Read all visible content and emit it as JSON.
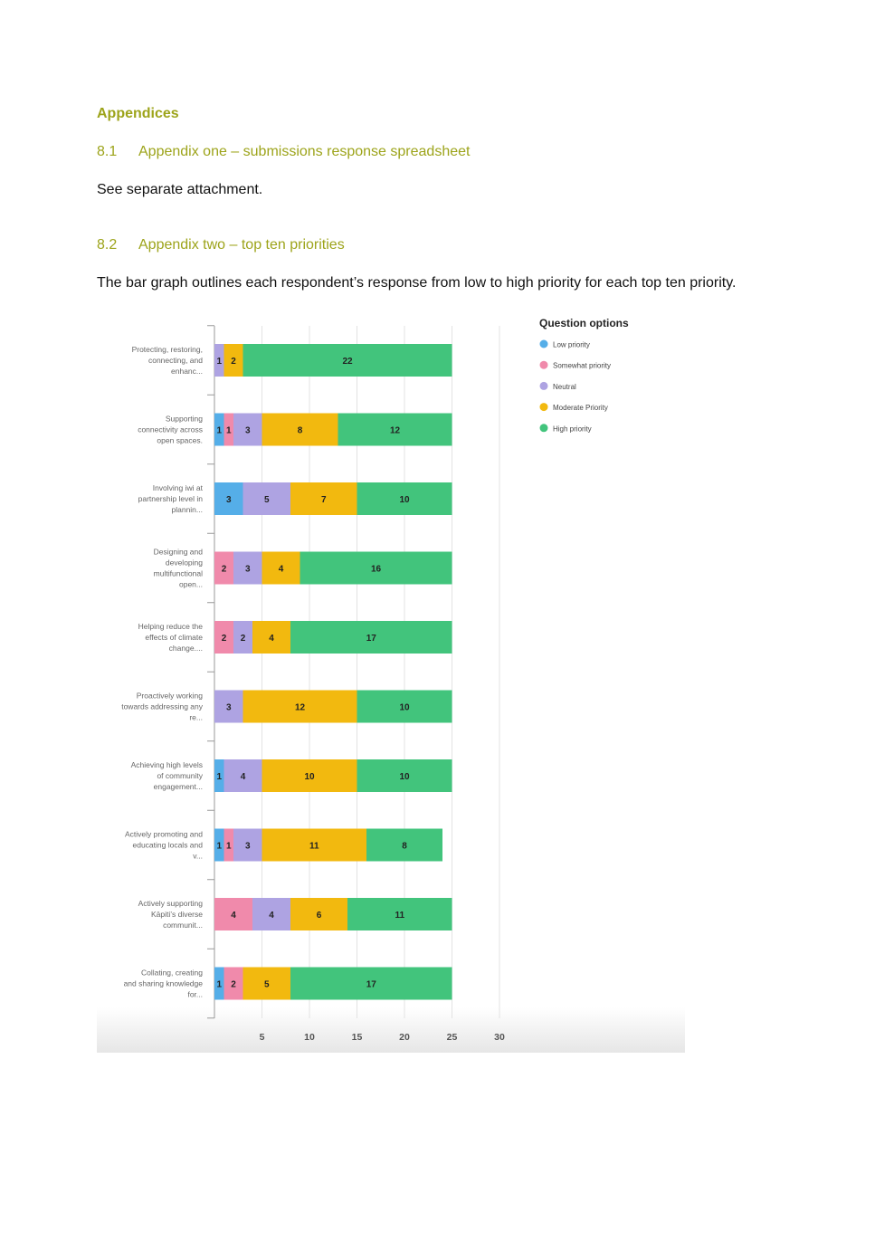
{
  "heading": "Appendices",
  "section1": {
    "number": "8.1",
    "title": "Appendix one – submissions response spreadsheet"
  },
  "para1": "See separate attachment.",
  "section2": {
    "number": "8.2",
    "title": "Appendix two – top ten priorities"
  },
  "para2": "The bar graph outlines each respondent’s response from low to high priority for each top ten priority.",
  "colors": {
    "Low priority": "#55aee8",
    "Somewhat priority": "#f08aab",
    "Neutral": "#aea3e2",
    "Moderate Priority": "#f2b90f",
    "High priority": "#42c47c"
  },
  "chart_data": {
    "type": "bar",
    "orientation": "horizontal",
    "stacked": true,
    "legend_title": "Question options",
    "legend_position": "right",
    "grid": true,
    "xlim": [
      0,
      30
    ],
    "xticks": [
      5,
      10,
      15,
      20,
      25,
      30
    ],
    "categories": [
      "Protecting, restoring, connecting, and enhanc...",
      "Supporting connectivity across open spaces.",
      "Involving iwi at partnership level in plannin...",
      "Designing and developing multifunctional open...",
      "Helping reduce the effects of climate change....",
      "Proactively working towards addressing any re...",
      "Achieving high levels of community engagement...",
      "Actively promoting and educating locals and v...",
      "Actively supporting Kāpiti’s diverse communit...",
      "Collating, creating and sharing knowledge for..."
    ],
    "series": [
      {
        "name": "Low priority",
        "values": [
          0,
          1,
          3,
          0,
          0,
          0,
          1,
          1,
          0,
          1
        ]
      },
      {
        "name": "Somewhat priority",
        "values": [
          0,
          1,
          0,
          2,
          2,
          0,
          0,
          1,
          4,
          2
        ]
      },
      {
        "name": "Neutral",
        "values": [
          1,
          3,
          5,
          3,
          2,
          3,
          4,
          3,
          4,
          0
        ]
      },
      {
        "name": "Moderate Priority",
        "values": [
          2,
          8,
          7,
          4,
          4,
          12,
          10,
          11,
          6,
          5
        ]
      },
      {
        "name": "High priority",
        "values": [
          22,
          12,
          10,
          16,
          17,
          10,
          10,
          8,
          11,
          17
        ]
      }
    ]
  }
}
